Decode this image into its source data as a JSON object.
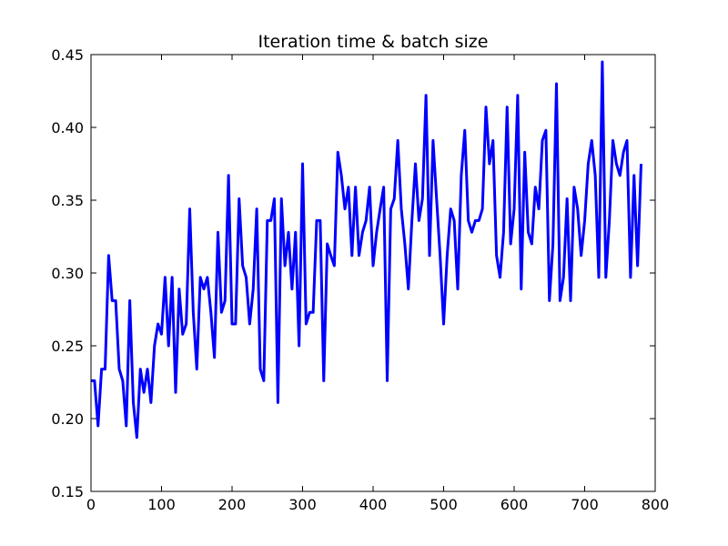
{
  "chart_data": {
    "type": "line",
    "title": "Iteration time & batch size",
    "xlabel": "",
    "ylabel": "",
    "xlim": [
      0,
      800
    ],
    "ylim": [
      0.15,
      0.45
    ],
    "x_ticks": [
      0,
      100,
      200,
      300,
      400,
      500,
      600,
      700,
      800
    ],
    "x_tick_labels": [
      "0",
      "100",
      "200",
      "300",
      "400",
      "500",
      "600",
      "700",
      "800"
    ],
    "y_ticks": [
      0.15,
      0.2,
      0.25,
      0.3,
      0.35,
      0.4,
      0.45
    ],
    "y_tick_labels": [
      "0.15",
      "0.20",
      "0.25",
      "0.30",
      "0.35",
      "0.40",
      "0.45"
    ],
    "grid": false,
    "line_color": "#0000ff",
    "series": [
      {
        "x": [
          0,
          5,
          10,
          15,
          20,
          25,
          30,
          35,
          40,
          45,
          50,
          55,
          60,
          65,
          70,
          75,
          80,
          85,
          90,
          95,
          100,
          105,
          110,
          115,
          120,
          125,
          130,
          135,
          140,
          145,
          150,
          155,
          160,
          165,
          170,
          175,
          180,
          185,
          190,
          195,
          200,
          205,
          210,
          215,
          220,
          225,
          230,
          235,
          240,
          245,
          250,
          255,
          260,
          265,
          270,
          275,
          280,
          285,
          290,
          295,
          300,
          305,
          310,
          315,
          320,
          325,
          330,
          335,
          340,
          345,
          350,
          355,
          360,
          365,
          370,
          375,
          380,
          385,
          390,
          395,
          400,
          405,
          410,
          415,
          420,
          425,
          430,
          435,
          440,
          445,
          450,
          455,
          460,
          465,
          470,
          475,
          480,
          485,
          490,
          495,
          500,
          505,
          510,
          515,
          520,
          525,
          530,
          535,
          540,
          545,
          550,
          555,
          560,
          565,
          570,
          575,
          580,
          585,
          590,
          595,
          600,
          605,
          610,
          615,
          620,
          625,
          630,
          635,
          640,
          645,
          650,
          655,
          660,
          665,
          670,
          675,
          680,
          685,
          690,
          695,
          700,
          705,
          710,
          715,
          720,
          725,
          730,
          735,
          740,
          745,
          750,
          755,
          760,
          765,
          770,
          775,
          780
        ],
        "y": [
          0.226,
          0.226,
          0.195,
          0.234,
          0.234,
          0.312,
          0.281,
          0.281,
          0.234,
          0.226,
          0.195,
          0.281,
          0.211,
          0.187,
          0.234,
          0.218,
          0.234,
          0.211,
          0.25,
          0.265,
          0.258,
          0.297,
          0.25,
          0.297,
          0.218,
          0.289,
          0.258,
          0.265,
          0.344,
          0.273,
          0.234,
          0.297,
          0.289,
          0.297,
          0.273,
          0.242,
          0.328,
          0.273,
          0.281,
          0.367,
          0.265,
          0.265,
          0.351,
          0.305,
          0.297,
          0.265,
          0.289,
          0.344,
          0.234,
          0.226,
          0.336,
          0.336,
          0.351,
          0.211,
          0.351,
          0.305,
          0.328,
          0.289,
          0.328,
          0.25,
          0.375,
          0.265,
          0.273,
          0.273,
          0.336,
          0.336,
          0.226,
          0.32,
          0.312,
          0.305,
          0.383,
          0.367,
          0.344,
          0.359,
          0.312,
          0.359,
          0.312,
          0.328,
          0.336,
          0.359,
          0.305,
          0.328,
          0.344,
          0.359,
          0.226,
          0.344,
          0.351,
          0.391,
          0.344,
          0.32,
          0.289,
          0.336,
          0.375,
          0.336,
          0.351,
          0.422,
          0.312,
          0.391,
          0.351,
          0.312,
          0.265,
          0.312,
          0.344,
          0.336,
          0.289,
          0.367,
          0.398,
          0.336,
          0.328,
          0.336,
          0.336,
          0.344,
          0.414,
          0.375,
          0.391,
          0.312,
          0.297,
          0.328,
          0.414,
          0.32,
          0.344,
          0.422,
          0.289,
          0.383,
          0.328,
          0.32,
          0.359,
          0.344,
          0.391,
          0.398,
          0.281,
          0.32,
          0.43,
          0.281,
          0.297,
          0.351,
          0.281,
          0.359,
          0.344,
          0.312,
          0.336,
          0.375,
          0.391,
          0.367,
          0.297,
          0.445,
          0.297,
          0.336,
          0.391,
          0.375,
          0.367,
          0.383,
          0.391,
          0.297,
          0.367,
          0.305,
          0.375
        ]
      }
    ]
  }
}
